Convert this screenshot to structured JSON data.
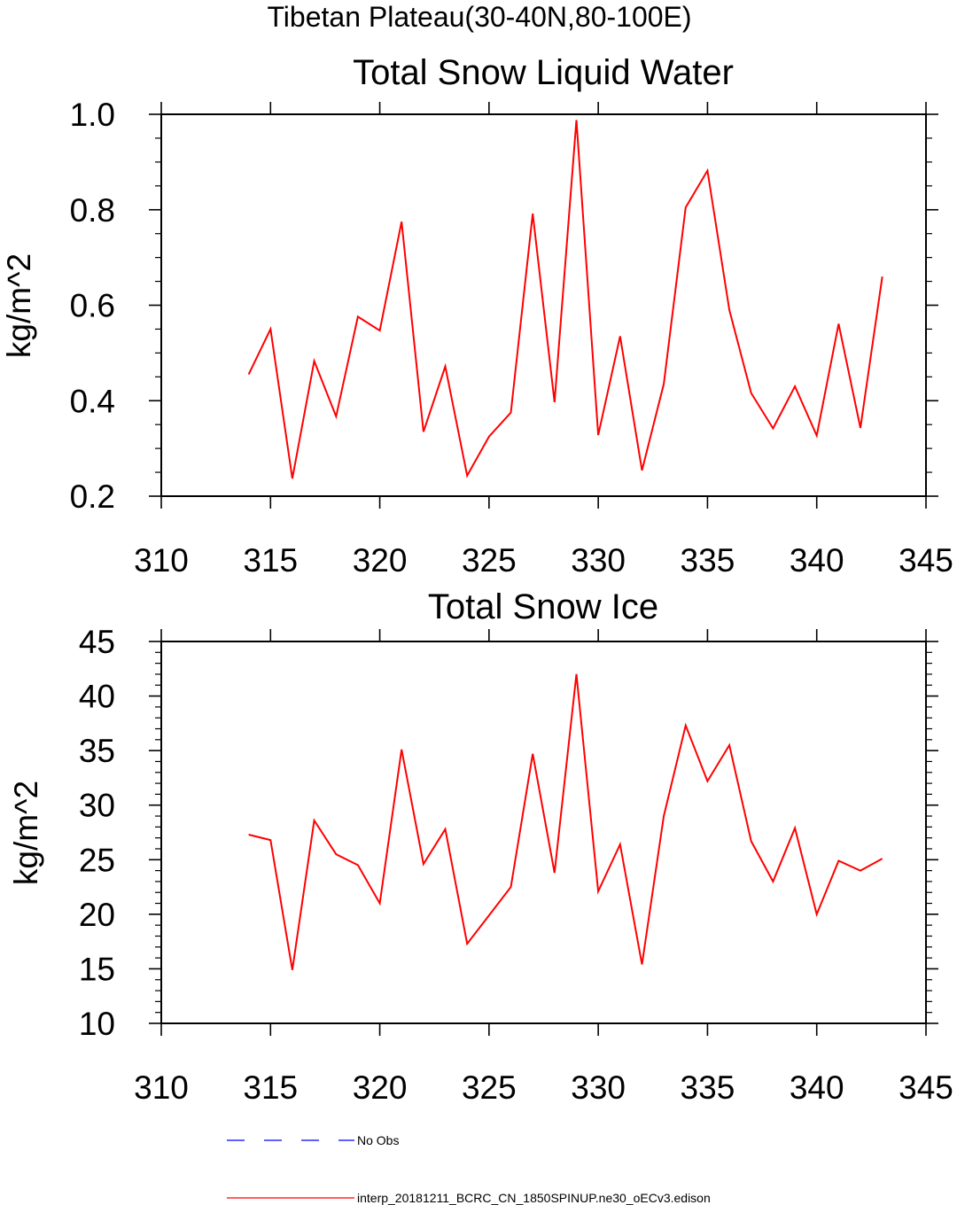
{
  "suptitle": "Tibetan Plateau(30-40N,80-100E)",
  "chart_data": [
    {
      "type": "line",
      "title": "Total Snow Liquid Water",
      "xlabel": "",
      "ylabel": "kg/m^2",
      "xlim": [
        310,
        345
      ],
      "ylim": [
        0.2,
        1.0
      ],
      "xticks": [
        "310",
        "315",
        "320",
        "325",
        "330",
        "335",
        "340",
        "345"
      ],
      "yticks": [
        "0.2",
        "0.4",
        "0.6",
        "0.8",
        "1.0"
      ],
      "series": [
        {
          "name": "interp_20181211_BCRC_CN_1850SPINUP.ne30_oECv3.edison",
          "color": "#ff0000",
          "x": [
            314,
            315,
            316,
            317,
            318,
            319,
            320,
            321,
            322,
            323,
            324,
            325,
            326,
            327,
            328,
            329,
            330,
            331,
            332,
            333,
            334,
            335,
            336,
            337,
            338,
            339,
            340,
            341,
            342,
            343
          ],
          "y": [
            0.455,
            0.55,
            0.237,
            0.483,
            0.367,
            0.576,
            0.547,
            0.775,
            0.335,
            0.472,
            0.243,
            0.325,
            0.375,
            0.792,
            0.397,
            0.988,
            0.328,
            0.535,
            0.254,
            0.435,
            0.805,
            0.882,
            0.59,
            0.416,
            0.342,
            0.43,
            0.327,
            0.561,
            0.343,
            0.66
          ]
        }
      ]
    },
    {
      "type": "line",
      "title": "Total Snow Ice",
      "xlabel": "",
      "ylabel": "kg/m^2",
      "xlim": [
        310,
        345
      ],
      "ylim": [
        10,
        45
      ],
      "xticks": [
        "310",
        "315",
        "320",
        "325",
        "330",
        "335",
        "340",
        "345"
      ],
      "yticks": [
        "10",
        "15",
        "20",
        "25",
        "30",
        "35",
        "40",
        "45"
      ],
      "series": [
        {
          "name": "interp_20181211_BCRC_CN_1850SPINUP.ne30_oECv3.edison",
          "color": "#ff0000",
          "x": [
            314,
            315,
            316,
            317,
            318,
            319,
            320,
            321,
            322,
            323,
            324,
            325,
            326,
            327,
            328,
            329,
            330,
            331,
            332,
            333,
            334,
            335,
            336,
            337,
            338,
            339,
            340,
            341,
            342,
            343
          ],
          "y": [
            27.3,
            26.8,
            14.9,
            28.6,
            25.5,
            24.5,
            21.0,
            35.1,
            24.6,
            27.8,
            17.3,
            19.9,
            22.5,
            34.7,
            23.8,
            42.0,
            22.1,
            26.4,
            15.4,
            29.0,
            37.3,
            32.2,
            35.5,
            26.7,
            23.0,
            27.9,
            20.0,
            24.9,
            24.0,
            25.1
          ]
        }
      ]
    }
  ],
  "legend": {
    "placement": "bottom-left",
    "items": [
      {
        "label": "No Obs",
        "color": "#0000ff",
        "style": "dashed"
      },
      {
        "label": "interp_20181211_BCRC_CN_1850SPINUP.ne30_oECv3.edison",
        "color": "#ff0000",
        "style": "solid"
      }
    ]
  }
}
